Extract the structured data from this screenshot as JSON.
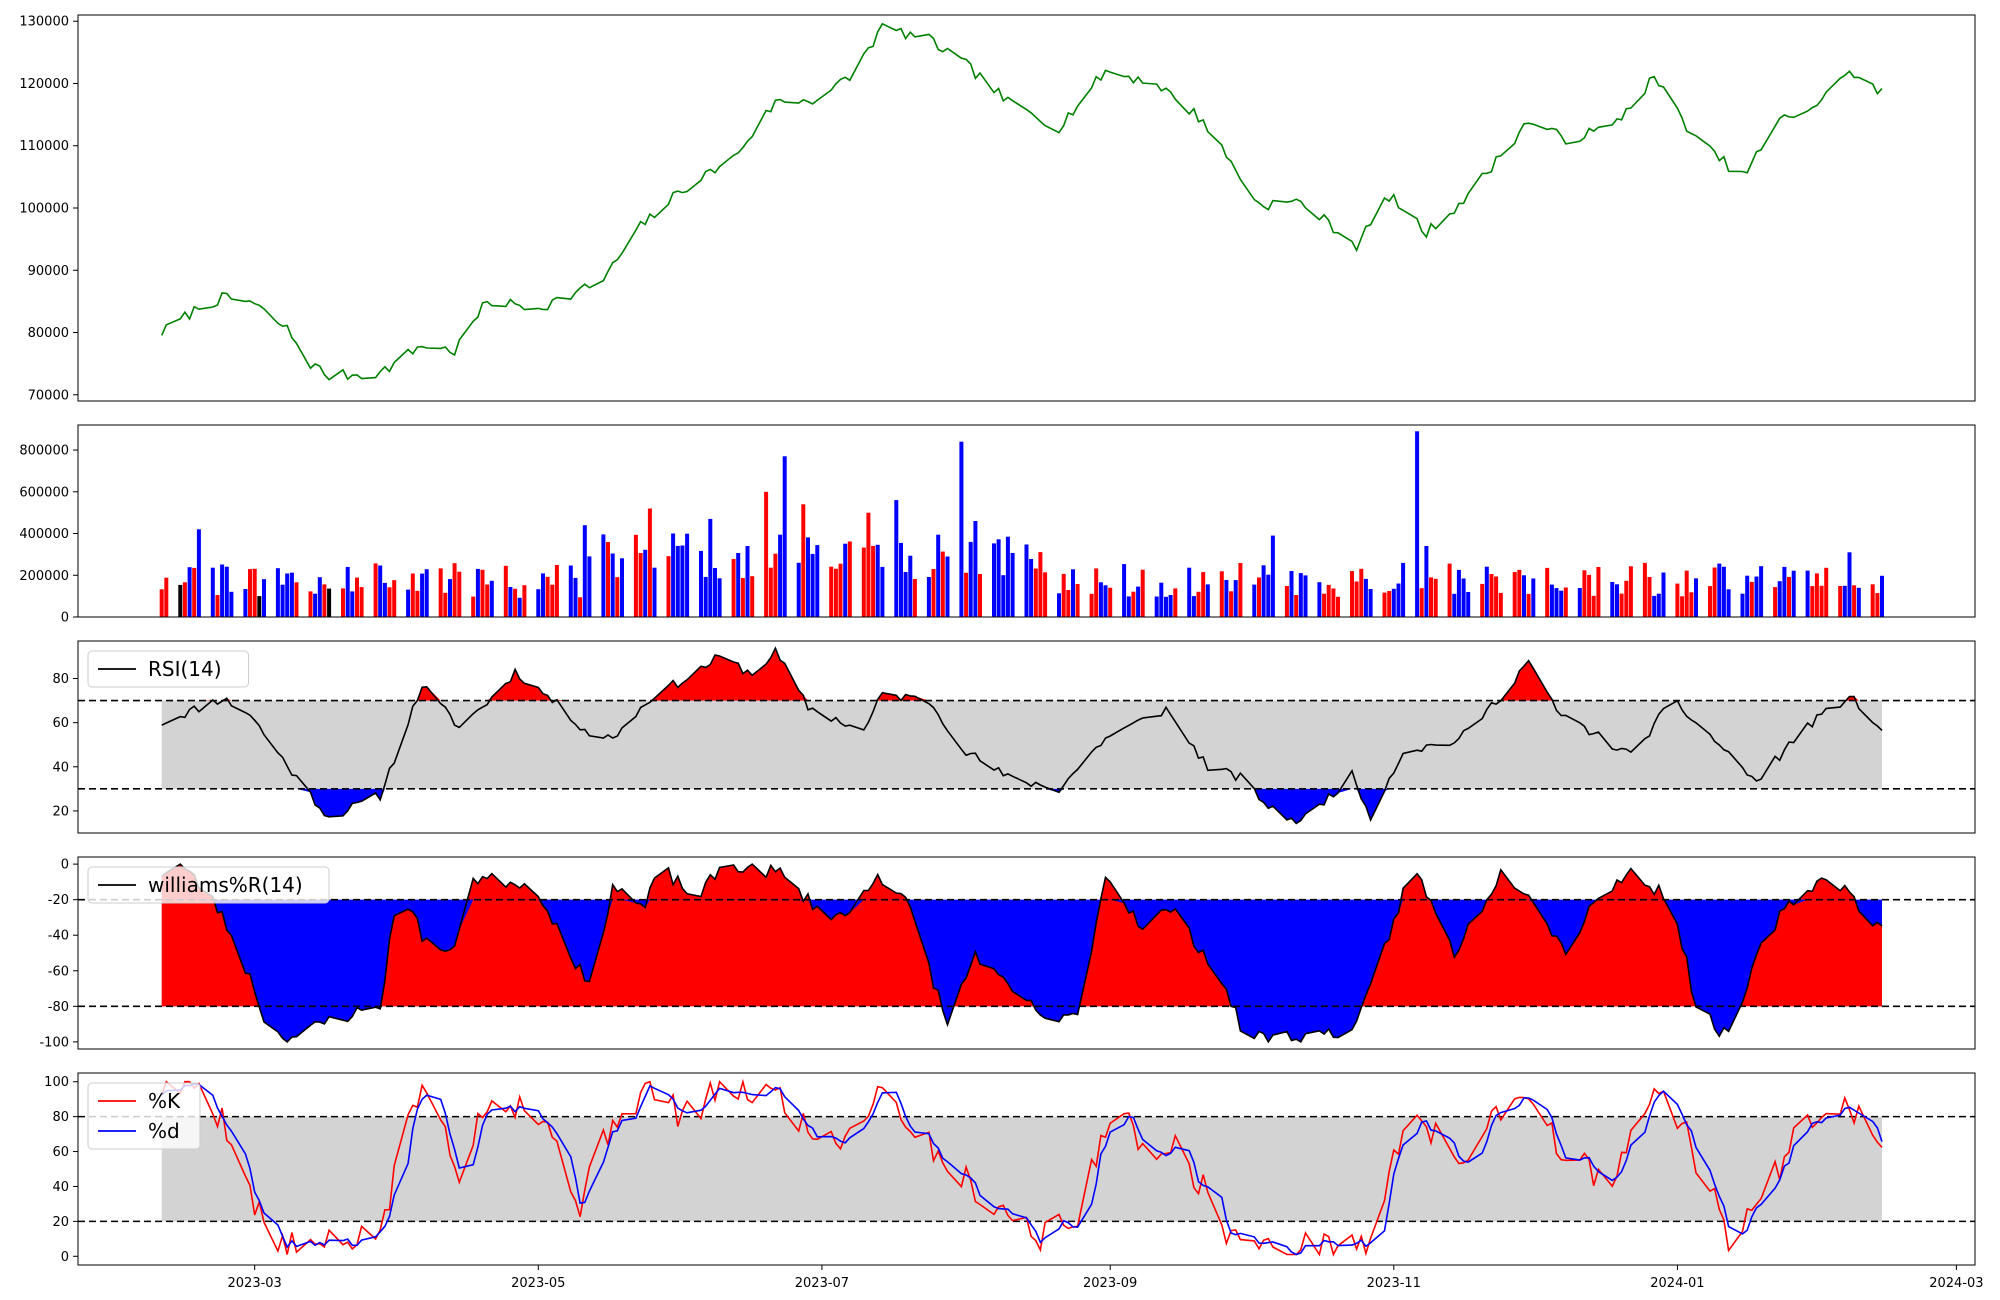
{
  "chart_data": [
    {
      "type": "line",
      "name": "price",
      "series": [
        {
          "color": "#008000",
          "values": []
        }
      ],
      "ylim": [
        69000,
        131000
      ],
      "yticks": [
        70000,
        80000,
        90000,
        100000,
        110000,
        120000,
        130000
      ],
      "keypoints": [
        [
          "2023-02-09",
          80000
        ],
        [
          "2023-02-17",
          84000
        ],
        [
          "2023-02-22",
          85500
        ],
        [
          "2023-02-28",
          85000
        ],
        [
          "2023-03-08",
          80500
        ],
        [
          "2023-03-13",
          75000
        ],
        [
          "2023-03-17",
          73000
        ],
        [
          "2023-03-28",
          73500
        ],
        [
          "2023-04-06",
          78000
        ],
        [
          "2023-04-13",
          77000
        ],
        [
          "2023-04-20",
          85000
        ],
        [
          "2023-05-01",
          84000
        ],
        [
          "2023-05-08",
          86000
        ],
        [
          "2023-05-15",
          88500
        ],
        [
          "2023-05-23",
          97000
        ],
        [
          "2023-06-01",
          103000
        ],
        [
          "2023-06-12",
          108000
        ],
        [
          "2023-06-21",
          117000
        ],
        [
          "2023-06-30",
          117500
        ],
        [
          "2023-07-07",
          121000
        ],
        [
          "2023-07-14",
          129000
        ],
        [
          "2023-07-24",
          127000
        ],
        [
          "2023-08-01",
          123000
        ],
        [
          "2023-08-10",
          117000
        ],
        [
          "2023-08-21",
          113000
        ],
        [
          "2023-08-31",
          122000
        ],
        [
          "2023-09-11",
          120000
        ],
        [
          "2023-09-21",
          114000
        ],
        [
          "2023-10-03",
          100500
        ],
        [
          "2023-10-12",
          101000
        ],
        [
          "2023-10-24",
          94000
        ],
        [
          "2023-10-31",
          102000
        ],
        [
          "2023-11-08",
          96000
        ],
        [
          "2023-11-17",
          102000
        ],
        [
          "2023-11-30",
          114000
        ],
        [
          "2023-12-08",
          111000
        ],
        [
          "2023-12-18",
          113000
        ],
        [
          "2023-12-27",
          121000
        ],
        [
          "2024-01-05",
          111000
        ],
        [
          "2024-01-15",
          105000
        ],
        [
          "2024-01-23",
          114000
        ],
        [
          "2024-02-01",
          117000
        ],
        [
          "2024-02-06",
          122000
        ],
        [
          "2024-02-14",
          118500
        ]
      ]
    },
    {
      "type": "bar",
      "name": "volume",
      "ylim": [
        0,
        920000
      ],
      "yticks": [
        0,
        200000,
        400000,
        600000,
        800000
      ],
      "colors": {
        "up": "#ff0000",
        "down": "#0000ff",
        "flat": "#000000"
      },
      "notable_values": [
        [
          "2023-02-17",
          420000
        ],
        [
          "2023-05-11",
          440000
        ],
        [
          "2023-05-25",
          520000
        ],
        [
          "2023-05-30",
          400000
        ],
        [
          "2023-06-07",
          470000
        ],
        [
          "2023-06-15",
          340000
        ],
        [
          "2023-06-19",
          600000
        ],
        [
          "2023-06-23",
          770000
        ],
        [
          "2023-06-27",
          540000
        ],
        [
          "2023-07-11",
          500000
        ],
        [
          "2023-07-17",
          560000
        ],
        [
          "2023-07-31",
          840000
        ],
        [
          "2023-08-03",
          460000
        ],
        [
          "2023-10-06",
          390000
        ],
        [
          "2023-11-06",
          890000
        ],
        [
          "2023-11-08",
          340000
        ],
        [
          "2024-02-07",
          310000
        ]
      ]
    },
    {
      "type": "line",
      "name": "rsi",
      "legend": [
        "RSI(14)"
      ],
      "ylim": [
        10,
        97
      ],
      "yticks": [
        20,
        40,
        60,
        80
      ],
      "thresholds": [
        30,
        70
      ],
      "colors": {
        "line": "#000000",
        "over": "#ff0000",
        "under": "#0000ff",
        "band": "#d3d3d3"
      },
      "keypoints": [
        [
          "2023-02-09",
          60
        ],
        [
          "2023-02-22",
          71
        ],
        [
          "2023-02-28",
          64
        ],
        [
          "2023-03-03",
          55
        ],
        [
          "2023-03-10",
          35
        ],
        [
          "2023-03-17",
          17
        ],
        [
          "2023-03-28",
          27
        ],
        [
          "2023-04-06",
          77
        ],
        [
          "2023-04-14",
          58
        ],
        [
          "2023-04-22",
          73
        ],
        [
          "2023-04-26",
          83
        ],
        [
          "2023-05-03",
          72
        ],
        [
          "2023-05-12",
          55
        ],
        [
          "2023-05-17",
          53
        ],
        [
          "2023-05-26",
          73
        ],
        [
          "2023-06-02",
          80
        ],
        [
          "2023-06-09",
          90
        ],
        [
          "2023-06-16",
          82
        ],
        [
          "2023-06-21",
          92
        ],
        [
          "2023-06-28",
          67
        ],
        [
          "2023-07-10",
          56
        ],
        [
          "2023-07-14",
          73
        ],
        [
          "2023-07-24",
          70
        ],
        [
          "2023-08-01",
          47
        ],
        [
          "2023-08-10",
          35
        ],
        [
          "2023-08-21",
          30
        ],
        [
          "2023-08-31",
          53
        ],
        [
          "2023-09-13",
          66
        ],
        [
          "2023-09-22",
          40
        ],
        [
          "2023-09-29",
          35
        ],
        [
          "2023-10-06",
          20
        ],
        [
          "2023-10-12",
          15
        ],
        [
          "2023-10-23",
          36
        ],
        [
          "2023-10-27",
          18
        ],
        [
          "2023-11-03",
          47
        ],
        [
          "2023-11-15",
          52
        ],
        [
          "2023-11-24",
          72
        ],
        [
          "2023-11-30",
          88
        ],
        [
          "2023-12-06",
          65
        ],
        [
          "2023-12-22",
          45
        ],
        [
          "2023-12-31",
          70
        ],
        [
          "2024-01-10",
          50
        ],
        [
          "2024-01-18",
          33
        ],
        [
          "2024-01-28",
          57
        ],
        [
          "2024-02-07",
          72
        ],
        [
          "2024-02-14",
          56
        ]
      ]
    },
    {
      "type": "line",
      "name": "williams",
      "legend": [
        "williams%R(14)"
      ],
      "ylim": [
        -104,
        4
      ],
      "yticks": [
        0,
        -20,
        -40,
        -60,
        -80,
        -100
      ],
      "thresholds": [
        -20,
        -80
      ],
      "colors": {
        "line": "#000000",
        "over": "#ff0000",
        "under": "#0000ff",
        "band": "#d3d3d3"
      },
      "keypoints": [
        [
          "2023-02-09",
          -5
        ],
        [
          "2023-02-13",
          0
        ],
        [
          "2023-02-20",
          -20
        ],
        [
          "2023-02-24",
          -40
        ],
        [
          "2023-03-01",
          -70
        ],
        [
          "2023-03-04",
          -95
        ],
        [
          "2023-03-10",
          -97
        ],
        [
          "2023-03-17",
          -88
        ],
        [
          "2023-03-28",
          -80
        ],
        [
          "2023-04-01",
          -10
        ],
        [
          "2023-04-06",
          -40
        ],
        [
          "2023-04-12",
          -52
        ],
        [
          "2023-04-17",
          -8
        ],
        [
          "2023-04-27",
          -10
        ],
        [
          "2023-05-02",
          -20
        ],
        [
          "2023-05-12",
          -70
        ],
        [
          "2023-05-17",
          -12
        ],
        [
          "2023-05-24",
          -25
        ],
        [
          "2023-05-27",
          -1
        ],
        [
          "2023-06-04",
          -20
        ],
        [
          "2023-06-10",
          0
        ],
        [
          "2023-06-22",
          -5
        ],
        [
          "2023-06-30",
          -25
        ],
        [
          "2023-07-06",
          -30
        ],
        [
          "2023-07-13",
          -5
        ],
        [
          "2023-07-20",
          -25
        ],
        [
          "2023-07-28",
          -90
        ],
        [
          "2023-08-03",
          -50
        ],
        [
          "2023-08-10",
          -70
        ],
        [
          "2023-08-20",
          -90
        ],
        [
          "2023-08-25",
          -85
        ],
        [
          "2023-08-31",
          -6
        ],
        [
          "2023-09-08",
          -35
        ],
        [
          "2023-09-14",
          -25
        ],
        [
          "2023-09-24",
          -60
        ],
        [
          "2023-09-30",
          -97
        ],
        [
          "2023-10-14",
          -97
        ],
        [
          "2023-10-24",
          -92
        ],
        [
          "2023-10-31",
          -40
        ],
        [
          "2023-11-05",
          0
        ],
        [
          "2023-11-14",
          -50
        ],
        [
          "2023-11-24",
          -5
        ],
        [
          "2023-11-30",
          -15
        ],
        [
          "2023-12-08",
          -50
        ],
        [
          "2023-12-14",
          -20
        ],
        [
          "2023-12-22",
          -5
        ],
        [
          "2023-12-31",
          -20
        ],
        [
          "2024-01-05",
          -80
        ],
        [
          "2024-01-12",
          -98
        ],
        [
          "2024-01-20",
          -40
        ],
        [
          "2024-01-26",
          -20
        ],
        [
          "2024-02-03",
          -5
        ],
        [
          "2024-02-08",
          -20
        ],
        [
          "2024-02-14",
          -37
        ]
      ]
    },
    {
      "type": "line",
      "name": "stochastic",
      "legend": [
        "%K",
        "%d"
      ],
      "ylim": [
        -5,
        105
      ],
      "yticks": [
        0,
        20,
        40,
        60,
        80,
        100
      ],
      "thresholds": [
        20,
        80
      ],
      "colors": {
        "k": "#ff0000",
        "d": "#0000ff",
        "band": "#d3d3d3"
      },
      "keypoints": [
        [
          "2023-02-09",
          97
        ],
        [
          "2023-02-17",
          99
        ],
        [
          "2023-02-24",
          70
        ],
        [
          "2023-03-01",
          30
        ],
        [
          "2023-03-06",
          5
        ],
        [
          "2023-03-14",
          5
        ],
        [
          "2023-03-21",
          8
        ],
        [
          "2023-03-29",
          18
        ],
        [
          "2023-04-03",
          85
        ],
        [
          "2023-04-08",
          95
        ],
        [
          "2023-04-14",
          50
        ],
        [
          "2023-04-20",
          90
        ],
        [
          "2023-04-28",
          88
        ],
        [
          "2023-05-04",
          70
        ],
        [
          "2023-05-10",
          30
        ],
        [
          "2023-05-17",
          78
        ],
        [
          "2023-05-25",
          96
        ],
        [
          "2023-06-01",
          80
        ],
        [
          "2023-06-10",
          96
        ],
        [
          "2023-06-21",
          94
        ],
        [
          "2023-06-29",
          70
        ],
        [
          "2023-07-06",
          68
        ],
        [
          "2023-07-14",
          98
        ],
        [
          "2023-07-21",
          72
        ],
        [
          "2023-07-29",
          50
        ],
        [
          "2023-08-07",
          30
        ],
        [
          "2023-08-17",
          12
        ],
        [
          "2023-08-25",
          20
        ],
        [
          "2023-09-01",
          85
        ],
        [
          "2023-09-08",
          65
        ],
        [
          "2023-09-16",
          62
        ],
        [
          "2023-09-26",
          15
        ],
        [
          "2023-10-06",
          2
        ],
        [
          "2023-10-14",
          5
        ],
        [
          "2023-10-27",
          8
        ],
        [
          "2023-11-05",
          90
        ],
        [
          "2023-11-14",
          50
        ],
        [
          "2023-11-22",
          80
        ],
        [
          "2023-11-30",
          96
        ],
        [
          "2023-12-07",
          60
        ],
        [
          "2023-12-18",
          40
        ],
        [
          "2023-12-27",
          96
        ],
        [
          "2024-01-03",
          70
        ],
        [
          "2024-01-12",
          10
        ],
        [
          "2024-01-21",
          40
        ],
        [
          "2024-01-28",
          80
        ],
        [
          "2024-02-06",
          90
        ],
        [
          "2024-02-14",
          62
        ]
      ]
    }
  ],
  "x_axis": {
    "range": [
      "2023-01-22",
      "2024-03-05"
    ],
    "ticks": [
      {
        "date": "2023-03-01",
        "label": "2023-03"
      },
      {
        "date": "2023-05-01",
        "label": "2023-05"
      },
      {
        "date": "2023-07-01",
        "label": "2023-07"
      },
      {
        "date": "2023-09-01",
        "label": "2023-09"
      },
      {
        "date": "2023-11-01",
        "label": "2023-11"
      },
      {
        "date": "2024-01-01",
        "label": "2024-01"
      },
      {
        "date": "2024-03-01",
        "label": "2024-03"
      }
    ]
  }
}
